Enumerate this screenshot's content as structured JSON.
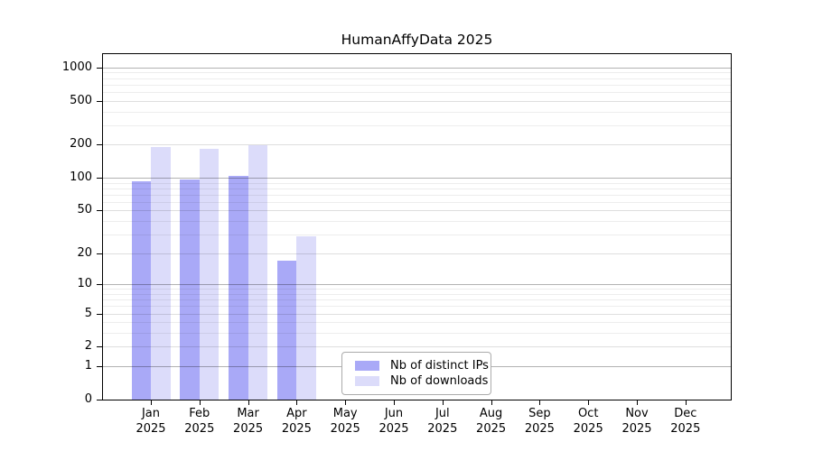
{
  "chart_data": {
    "type": "bar",
    "title": "HumanAffyData 2025",
    "year_label": "2025",
    "months": [
      "Jan",
      "Feb",
      "Mar",
      "Apr",
      "May",
      "Jun",
      "Jul",
      "Aug",
      "Sep",
      "Oct",
      "Nov",
      "Dec"
    ],
    "series": [
      {
        "name": "Nb of distinct IPs",
        "color": "#a9a9f7",
        "values": [
          93,
          96,
          103,
          17,
          null,
          null,
          null,
          null,
          null,
          null,
          null,
          null
        ]
      },
      {
        "name": "Nb of downloads",
        "color": "#dcdcfa",
        "values": [
          189,
          183,
          197,
          29,
          null,
          null,
          null,
          null,
          null,
          null,
          null,
          null
        ]
      }
    ],
    "y_axis": {
      "scale": "log1p",
      "ticks": [
        0,
        1,
        2,
        5,
        10,
        20,
        50,
        100,
        200,
        500,
        1000
      ],
      "minor_gridlines": [
        3,
        4,
        6,
        7,
        8,
        9,
        30,
        40,
        60,
        70,
        80,
        90,
        300,
        400,
        600,
        700,
        800,
        900
      ],
      "max_value": 1320
    },
    "grid": true,
    "legend_position": "bottom-center"
  }
}
